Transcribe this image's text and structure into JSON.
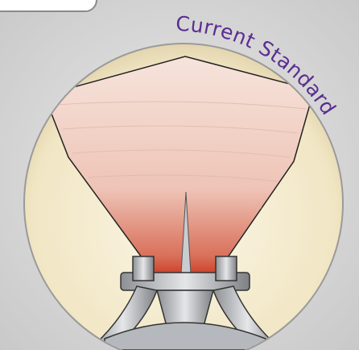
{
  "label": "Current Standard"
}
